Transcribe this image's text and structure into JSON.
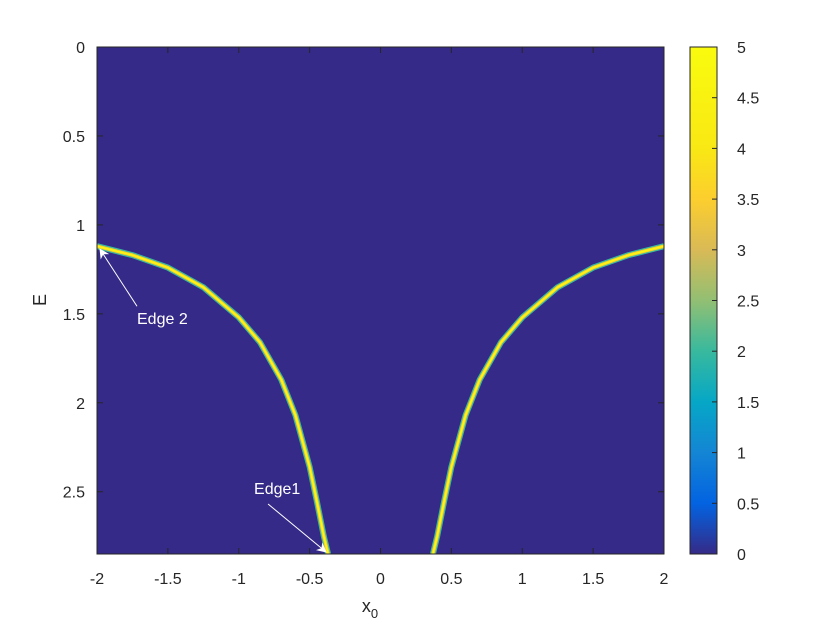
{
  "chart_data": {
    "type": "heatmap",
    "title": "",
    "xlabel": "x",
    "xlabel_subscript": "0",
    "ylabel": "E",
    "xlim": [
      -2,
      2
    ],
    "ylim": [
      0,
      2.85
    ],
    "y_reversed": true,
    "x_ticks": [
      "-2",
      "-1.5",
      "-1",
      "-0.5",
      "0",
      "0.5",
      "1",
      "1.5",
      "2"
    ],
    "y_ticks": [
      "0",
      "0.5",
      "1",
      "1.5",
      "2",
      "2.5"
    ],
    "colorbar": {
      "colormap": "parula",
      "range": [
        0,
        5
      ],
      "ticks": [
        "0",
        "0.5",
        "1",
        "1.5",
        "2",
        "2.5",
        "3",
        "3.5",
        "4",
        "4.5",
        "5"
      ]
    },
    "background_value": 0,
    "curves": [
      {
        "name": "left branch",
        "peak_value": 5,
        "points": [
          [
            -2,
            1.12
          ],
          [
            -1.75,
            1.17
          ],
          [
            -1.5,
            1.24
          ],
          [
            -1.25,
            1.35
          ],
          [
            -1,
            1.52
          ],
          [
            -0.85,
            1.66
          ],
          [
            -0.7,
            1.87
          ],
          [
            -0.6,
            2.07
          ],
          [
            -0.5,
            2.36
          ],
          [
            -0.45,
            2.55
          ],
          [
            -0.4,
            2.75
          ],
          [
            -0.37,
            2.85
          ]
        ]
      },
      {
        "name": "right branch",
        "peak_value": 5,
        "points": [
          [
            0.37,
            2.85
          ],
          [
            0.4,
            2.75
          ],
          [
            0.45,
            2.55
          ],
          [
            0.5,
            2.36
          ],
          [
            0.6,
            2.07
          ],
          [
            0.7,
            1.87
          ],
          [
            0.85,
            1.66
          ],
          [
            1,
            1.52
          ],
          [
            1.25,
            1.35
          ],
          [
            1.5,
            1.24
          ],
          [
            1.75,
            1.17
          ],
          [
            2,
            1.12
          ]
        ]
      }
    ],
    "annotations": [
      {
        "text": "Edge 2",
        "points_to": [
          -2,
          1.12
        ]
      },
      {
        "text": "Edge1",
        "points_to": [
          -0.37,
          2.85
        ]
      }
    ],
    "colors": {
      "background": "#352a87",
      "axis": "#262626",
      "annotation": "#ffffff"
    }
  }
}
